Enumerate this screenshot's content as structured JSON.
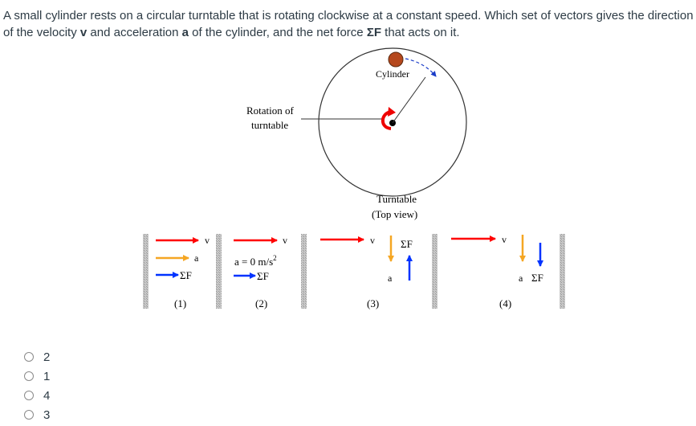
{
  "question": {
    "part1": "A small cylinder rests on a circular turntable that is rotating clockwise at a constant speed. Which set of vectors gives the direction of the velocity ",
    "v": "v",
    "part2": " and acceleration ",
    "a": "a",
    "part3": " of the cylinder, and the net force ",
    "f": "ΣF",
    "part4": " that acts on it."
  },
  "figure": {
    "cylinder_label": "Cylinder",
    "rotation_label_1": "Rotation of",
    "rotation_label_2": "turntable",
    "turntable_label_1": "Turntable",
    "turntable_label_2": "(Top view)",
    "options": [
      {
        "number": "(1)",
        "v": "v",
        "a": "a",
        "f": "ΣF"
      },
      {
        "number": "(2)",
        "v": "v",
        "a": "a = 0 m/s",
        "a_sup": "2",
        "f": "ΣF"
      },
      {
        "number": "(3)",
        "v": "v",
        "a": "a",
        "f": "ΣF"
      },
      {
        "number": "(4)",
        "v": "v",
        "a": "a",
        "f": "ΣF"
      }
    ],
    "colors": {
      "velocity": "#ff0000",
      "acceleration": "#f5a623",
      "force": "#0033ff",
      "cylinder": "#b5481d"
    }
  },
  "answers": [
    {
      "label": "2"
    },
    {
      "label": "1"
    },
    {
      "label": "4"
    },
    {
      "label": "3"
    }
  ]
}
